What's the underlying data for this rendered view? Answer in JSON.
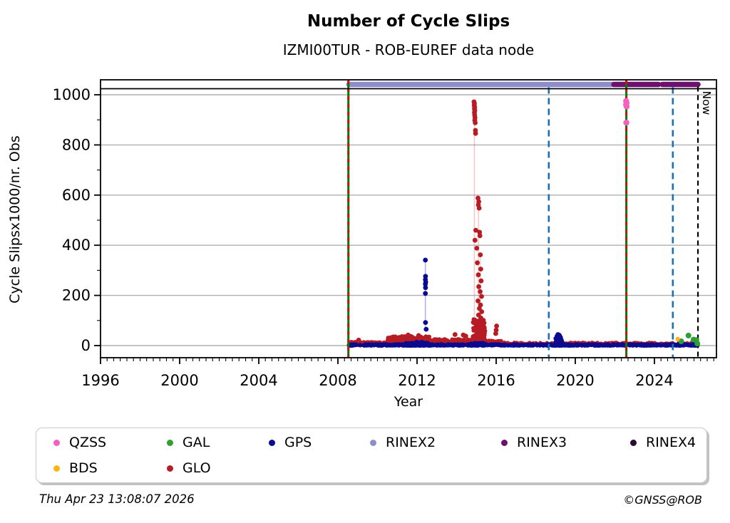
{
  "header": {
    "title": "Number of Cycle Slips",
    "subtitle": "IZMI00TUR - ROB-EUREF data node"
  },
  "chart_data": {
    "type": "scatter",
    "title": "Number of Cycle Slips",
    "subtitle": "IZMI00TUR - ROB-EUREF data node",
    "xlabel": "Year",
    "ylabel": "Cycle Slipsx1000/nr. Obs",
    "x_ticks": [
      1996,
      2000,
      2004,
      2008,
      2012,
      2016,
      2020,
      2024
    ],
    "y_ticks": [
      0,
      200,
      400,
      600,
      800,
      1000
    ],
    "x_range": [
      1996,
      2027.1
    ],
    "y_range": [
      -48,
      1025
    ],
    "grid": "horizontal-gray",
    "now_marker": {
      "label": "Now",
      "year": 2026.2
    },
    "event_lines": [
      {
        "year": 2008.53,
        "color": "#007b00",
        "overlay_color": "#d01010",
        "style": "solid-with-red-dash"
      },
      {
        "year": 2022.58,
        "color": "#007b00",
        "overlay_color": "#d01010",
        "style": "solid-with-red-dash"
      }
    ],
    "reference_lines": [
      {
        "year": 2018.66,
        "color": "#1c6fb5",
        "style": "dashed"
      },
      {
        "year": 2024.93,
        "color": "#1c6fb5",
        "style": "dashed"
      }
    ],
    "rinex_bars": [
      {
        "format": "RINEX2",
        "start": 2008.55,
        "end": 2018.63
      },
      {
        "format": "RINEX2",
        "start": 2018.7,
        "end": 2021.85
      },
      {
        "format": "RINEX3",
        "start": 2021.95,
        "end": 2024.2
      },
      {
        "format": "RINEX3",
        "start": 2024.4,
        "end": 2026.2
      }
    ],
    "stems": [
      {
        "x": 2012.42,
        "v0": 60,
        "v1": 341,
        "color": "rgba(40,40,170,0.35)"
      },
      {
        "x": 2014.9,
        "v0": 0,
        "v1": 972,
        "color": "rgba(225,70,70,0.30)"
      },
      {
        "x": 2015.11,
        "v0": 0,
        "v1": 588,
        "color": "rgba(225,70,70,0.30)"
      },
      {
        "x": 2015.2,
        "v0": 0,
        "v1": 362,
        "color": "rgba(225,70,70,0.25)"
      },
      {
        "x": 2022.58,
        "v0": 885,
        "v1": 975,
        "color": "rgba(250,110,205,0.45)"
      }
    ],
    "series": [
      {
        "name": "GLO",
        "color": "#b71c25",
        "points": [
          [
            2014.88,
            972
          ],
          [
            2014.9,
            965
          ],
          [
            2014.89,
            958
          ],
          [
            2014.91,
            951
          ],
          [
            2014.9,
            944
          ],
          [
            2014.92,
            937
          ],
          [
            2014.9,
            929
          ],
          [
            2014.91,
            919
          ],
          [
            2014.93,
            909
          ],
          [
            2014.92,
            898
          ],
          [
            2014.94,
            888
          ],
          [
            2014.95,
            858
          ],
          [
            2014.96,
            846
          ],
          [
            2015.08,
            588
          ],
          [
            2015.12,
            574
          ],
          [
            2015.1,
            561
          ],
          [
            2015.14,
            548
          ],
          [
            2014.97,
            460
          ],
          [
            2015.16,
            452
          ],
          [
            2015.18,
            438
          ],
          [
            2014.93,
            420
          ],
          [
            2015.02,
            388
          ],
          [
            2015.2,
            362
          ],
          [
            2015.05,
            330
          ],
          [
            2015.22,
            305
          ],
          [
            2015.1,
            282
          ],
          [
            2015.24,
            258
          ],
          [
            2015.12,
            235
          ],
          [
            2015.19,
            215
          ],
          [
            2015.26,
            196
          ],
          [
            2015.08,
            178
          ],
          [
            2015.21,
            162
          ],
          [
            2015.15,
            148
          ],
          [
            2015.27,
            135
          ],
          [
            2015.11,
            122
          ],
          [
            2015.23,
            110
          ],
          [
            2015.17,
            100
          ],
          [
            2015.28,
            90
          ],
          [
            2015.13,
            80
          ],
          [
            2015.25,
            70
          ],
          [
            2015.29,
            55
          ],
          [
            2013.92,
            44
          ],
          [
            2014.34,
            42
          ],
          [
            2014.46,
            38
          ],
          [
            2010.9,
            33
          ],
          [
            2011.55,
            42
          ],
          [
            2012.08,
            40
          ],
          [
            2016.02,
            78
          ],
          [
            2016.0,
            62
          ],
          [
            2015.98,
            48
          ],
          [
            2009.05,
            22
          ]
        ],
        "bands": [
          {
            "x0": 2008.55,
            "x1": 2010.5,
            "n": 170,
            "vmin": 2,
            "vmax": 15,
            "bias": 1.2,
            "seed": 21
          },
          {
            "x0": 2010.5,
            "x1": 2012.7,
            "n": 260,
            "vmin": 6,
            "vmax": 38,
            "bias": 1.3,
            "seed": 22
          },
          {
            "x0": 2012.7,
            "x1": 2014.8,
            "n": 200,
            "vmin": 4,
            "vmax": 26,
            "bias": 1.4,
            "seed": 23
          },
          {
            "x0": 2014.8,
            "x1": 2015.45,
            "n": 170,
            "vmin": 2,
            "vmax": 105,
            "bias": 1.7,
            "seed": 24
          },
          {
            "x0": 2015.45,
            "x1": 2016.35,
            "n": 90,
            "vmin": 2,
            "vmax": 20,
            "bias": 1.4,
            "seed": 25
          },
          {
            "x0": 2016.35,
            "x1": 2022.6,
            "n": 200,
            "vmin": 2,
            "vmax": 12,
            "bias": 1.3,
            "seed": 26
          },
          {
            "x0": 2022.65,
            "x1": 2026.2,
            "n": 130,
            "vmin": 2,
            "vmax": 12,
            "bias": 1.3,
            "seed": 27
          }
        ]
      },
      {
        "name": "GPS",
        "color": "#0b0b8f",
        "points": [
          [
            2012.42,
            341
          ],
          [
            2012.43,
            276
          ],
          [
            2012.42,
            263
          ],
          [
            2012.44,
            253
          ],
          [
            2012.42,
            245
          ],
          [
            2012.43,
            231
          ],
          [
            2012.42,
            208
          ],
          [
            2012.43,
            92
          ],
          [
            2012.46,
            65
          ],
          [
            2019.02,
            28
          ],
          [
            2019.08,
            38
          ],
          [
            2019.12,
            44
          ],
          [
            2019.16,
            41
          ],
          [
            2019.22,
            33
          ],
          [
            2019.3,
            20
          ]
        ],
        "bands": [
          {
            "x0": 2008.55,
            "x1": 2026.2,
            "n": 720,
            "vmin": 0,
            "vmax": 5,
            "bias": 1.2,
            "seed": 11
          },
          {
            "x0": 2011.4,
            "x1": 2012.65,
            "n": 60,
            "vmin": 0,
            "vmax": 11,
            "bias": 1.4,
            "seed": 12
          },
          {
            "x0": 2014.7,
            "x1": 2015.45,
            "n": 50,
            "vmin": 0,
            "vmax": 11,
            "bias": 1.4,
            "seed": 13
          },
          {
            "x0": 2018.98,
            "x1": 2019.35,
            "n": 90,
            "vmin": 0,
            "vmax": 46,
            "bias": 1.6,
            "shape": "bump",
            "seed": 14
          },
          {
            "x0": 2011.9,
            "x1": 2012.6,
            "n": 45,
            "vmin": 0,
            "vmax": 16,
            "bias": 1.4,
            "seed": 17
          },
          {
            "x0": 2025.95,
            "x1": 2026.2,
            "n": 25,
            "vmin": 0,
            "vmax": 10,
            "bias": 1.4,
            "seed": 15
          }
        ]
      },
      {
        "name": "GAL",
        "color": "#2f9e33",
        "points": [
          [
            2025.35,
            17
          ],
          [
            2025.72,
            40
          ],
          [
            2025.98,
            24
          ],
          [
            2026.12,
            22
          ],
          [
            2026.17,
            8
          ]
        ],
        "bands": []
      },
      {
        "name": "BDS",
        "color": "#fdb515",
        "points": [
          [
            2025.18,
            26
          ]
        ],
        "bands": []
      },
      {
        "name": "QZSS",
        "color": "#f55fc0",
        "points": [
          [
            2022.57,
            975
          ],
          [
            2022.59,
            968
          ],
          [
            2022.57,
            961
          ],
          [
            2022.59,
            953
          ],
          [
            2022.58,
            889
          ]
        ],
        "bands": []
      }
    ]
  },
  "legend": {
    "items": [
      {
        "label": "QZSS",
        "color": "#f55fc0",
        "row": 0,
        "col": 0
      },
      {
        "label": "GAL",
        "color": "#2f9e33",
        "row": 0,
        "col": 1
      },
      {
        "label": "GPS",
        "color": "#0b0b8f",
        "row": 0,
        "col": 2
      },
      {
        "label": "RINEX2",
        "color": "#8d8dcc",
        "row": 0,
        "col": 3
      },
      {
        "label": "RINEX3",
        "color": "#6e1070",
        "row": 0,
        "col": 4
      },
      {
        "label": "RINEX4",
        "color": "#2c0b33",
        "row": 0,
        "col": 5
      },
      {
        "label": "BDS",
        "color": "#fdb515",
        "row": 1,
        "col": 0
      },
      {
        "label": "GLO",
        "color": "#b71c25",
        "row": 1,
        "col": 1
      }
    ]
  },
  "footer": {
    "timestamp": "Thu Apr 23 13:08:07 2026",
    "credit": "©GNSS@ROB"
  },
  "colors": {
    "rinex2_bar": "#8d8dcc",
    "rinex3_bar": "#6e1070",
    "grid": "#b0b0b0",
    "frame": "#000000",
    "event_green": "#007b00",
    "event_red_overlay": "#d01010",
    "reference_blue": "#1c6fb5",
    "now_black": "#000000"
  }
}
